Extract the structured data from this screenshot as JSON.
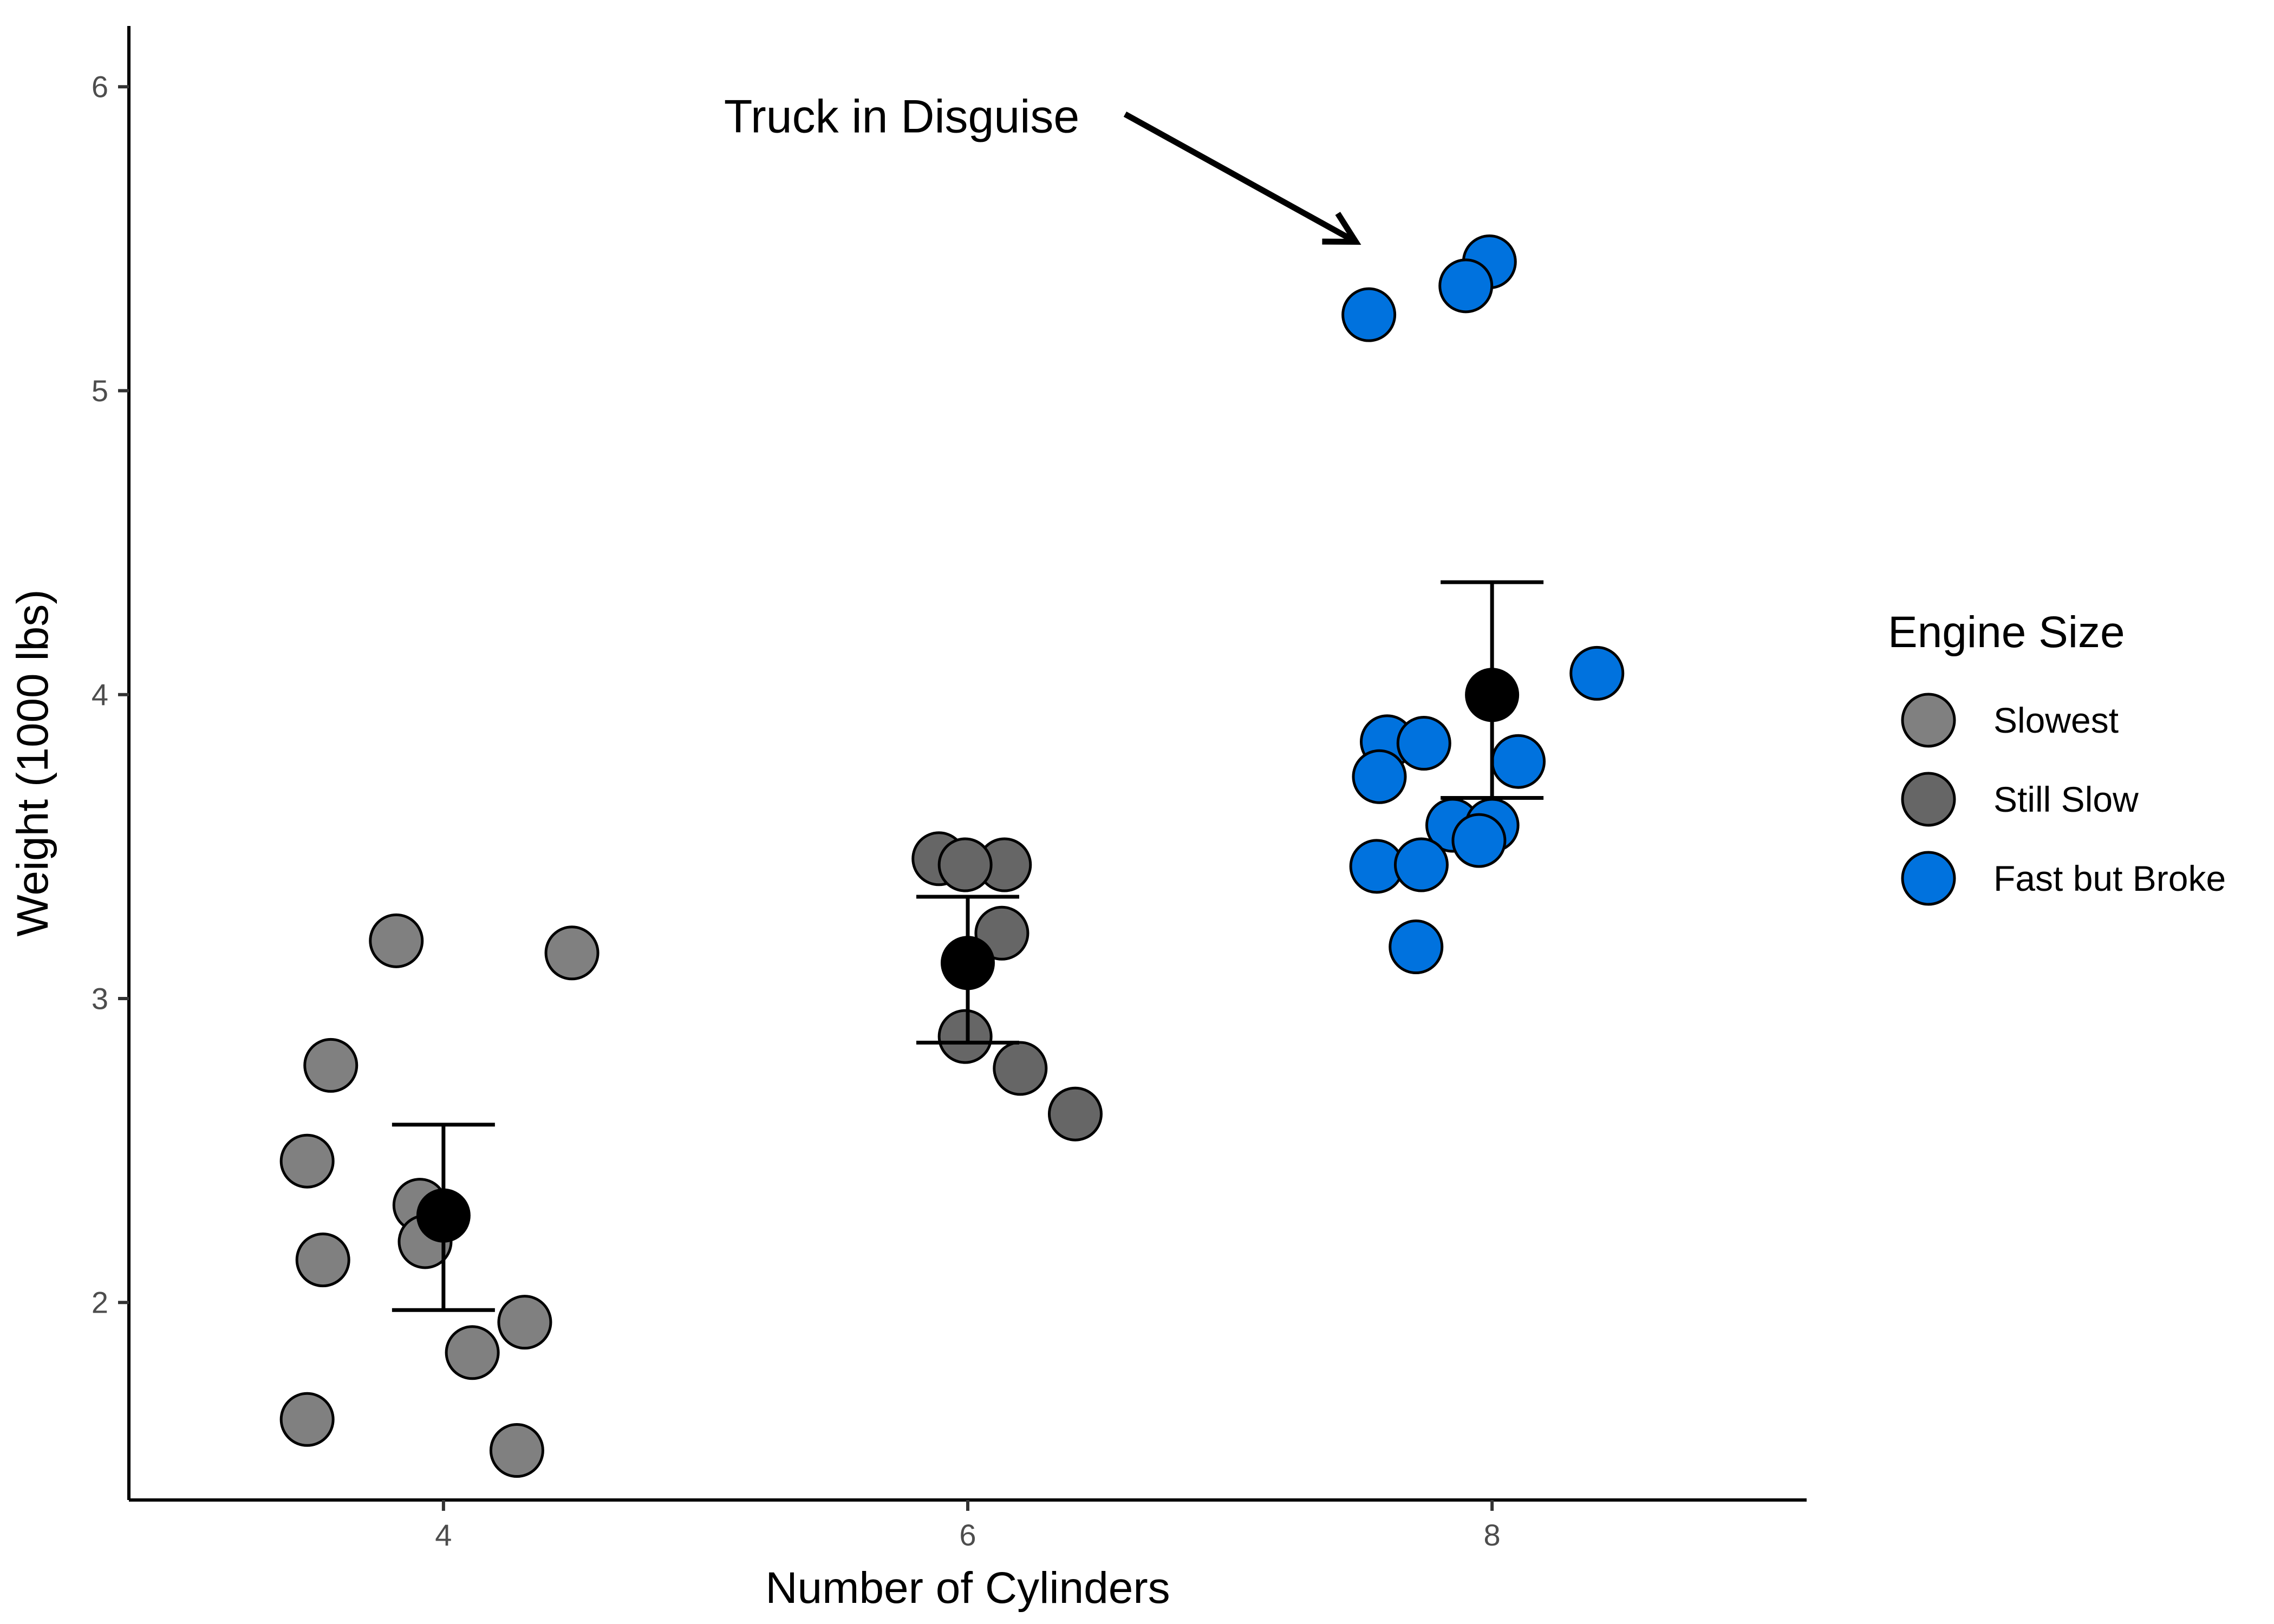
{
  "chart_data": {
    "type": "scatter",
    "xlabel": "Number of Cylinders",
    "ylabel": "Weight (1000 lbs)",
    "xlim": [
      2.8,
      9.2
    ],
    "ylim": [
      1.35,
      6.2
    ],
    "x_ticks": [
      4,
      6,
      8
    ],
    "y_ticks": [
      2,
      3,
      4,
      5,
      6
    ],
    "grid": false,
    "legend": {
      "title": "Engine Size",
      "placement": "right",
      "entries": [
        {
          "label": "Slowest",
          "color": "#808080"
        },
        {
          "label": "Still Slow",
          "color": "#666666"
        },
        {
          "label": "Fast but Broke",
          "color": "#0072de"
        }
      ]
    },
    "series": [
      {
        "name": "Slowest",
        "color": "#808080",
        "points": [
          {
            "x": 3.82,
            "y": 3.19
          },
          {
            "x": 4.49,
            "y": 3.15
          },
          {
            "x": 3.57,
            "y": 2.78
          },
          {
            "x": 3.48,
            "y": 2.465
          },
          {
            "x": 3.91,
            "y": 2.32
          },
          {
            "x": 3.93,
            "y": 2.2
          },
          {
            "x": 3.54,
            "y": 2.14
          },
          {
            "x": 4.31,
            "y": 1.935
          },
          {
            "x": 4.11,
            "y": 1.835
          },
          {
            "x": 3.48,
            "y": 1.615
          },
          {
            "x": 4.28,
            "y": 1.513
          }
        ]
      },
      {
        "name": "Still Slow",
        "color": "#666666",
        "points": [
          {
            "x": 5.89,
            "y": 3.46
          },
          {
            "x": 6.14,
            "y": 3.44
          },
          {
            "x": 5.99,
            "y": 3.44
          },
          {
            "x": 6.13,
            "y": 3.215
          },
          {
            "x": 5.99,
            "y": 2.875
          },
          {
            "x": 6.2,
            "y": 2.77
          },
          {
            "x": 6.41,
            "y": 2.62
          }
        ]
      },
      {
        "name": "Fast but Broke",
        "color": "#0072de",
        "points": [
          {
            "x": 7.99,
            "y": 5.424
          },
          {
            "x": 7.9,
            "y": 5.345
          },
          {
            "x": 7.53,
            "y": 5.25
          },
          {
            "x": 8.4,
            "y": 4.07
          },
          {
            "x": 7.6,
            "y": 3.845
          },
          {
            "x": 7.74,
            "y": 3.84
          },
          {
            "x": 8.1,
            "y": 3.78
          },
          {
            "x": 7.57,
            "y": 3.73
          },
          {
            "x": 7.85,
            "y": 3.57
          },
          {
            "x": 8.0,
            "y": 3.57
          },
          {
            "x": 7.95,
            "y": 3.52
          },
          {
            "x": 7.56,
            "y": 3.435
          },
          {
            "x": 7.73,
            "y": 3.44
          },
          {
            "x": 7.71,
            "y": 3.17
          }
        ]
      }
    ],
    "summary": [
      {
        "x": 4,
        "mean": 2.286,
        "lower": 1.975,
        "upper": 2.585
      },
      {
        "x": 6,
        "mean": 3.117,
        "lower": 2.855,
        "upper": 3.335
      },
      {
        "x": 8,
        "mean": 3.999,
        "lower": 3.66,
        "upper": 4.37
      }
    ],
    "annotation": {
      "text": "Truck in Disguise",
      "text_x": 5.07,
      "text_y": 5.89,
      "arrow_from": {
        "x": 6.6,
        "y": 5.91
      },
      "arrow_to": {
        "x": 7.48,
        "y": 5.49
      }
    }
  }
}
